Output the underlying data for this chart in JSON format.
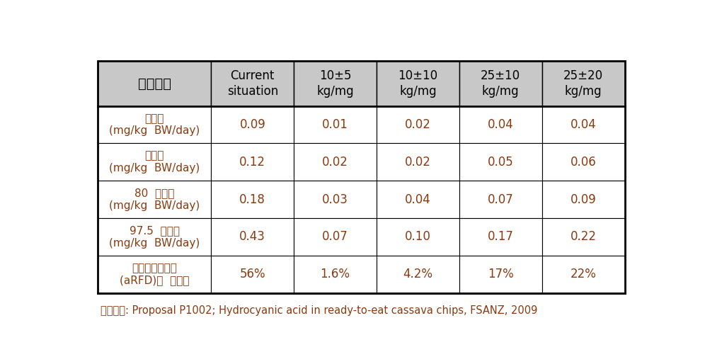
{
  "header_col0": "시나리오",
  "headers": [
    [
      "Current",
      "situation"
    ],
    [
      "10±5",
      "kg/mg"
    ],
    [
      "10±10",
      "kg/mg"
    ],
    [
      "25±10",
      "kg/mg"
    ],
    [
      "25±20",
      "kg/mg"
    ]
  ],
  "row_labels": [
    [
      "중앙값",
      "(mg/kg  BW/day)"
    ],
    [
      "중앙값",
      "(mg/kg  BW/day)"
    ],
    [
      "80  분위수",
      "(mg/kg  BW/day)"
    ],
    [
      "97.5  분위수",
      "(mg/kg  BW/day)"
    ],
    [
      "급성독성참고치",
      "(aRFD)의  가능성"
    ]
  ],
  "data": [
    [
      "0.09",
      "0.01",
      "0.02",
      "0.04",
      "0.04"
    ],
    [
      "0.12",
      "0.02",
      "0.02",
      "0.05",
      "0.06"
    ],
    [
      "0.18",
      "0.03",
      "0.04",
      "0.07",
      "0.09"
    ],
    [
      "0.43",
      "0.07",
      "0.10",
      "0.17",
      "0.22"
    ],
    [
      "56%",
      "1.6%",
      "4.2%",
      "17%",
      "22%"
    ]
  ],
  "footnote": "참고자료: Proposal P1002; Hydrocyanic acid in ready-to-eat cassava chips, FSANZ, 2009",
  "header_bg": "#C8C8C8",
  "header_text_color": "#000000",
  "cell_text_color": "#8B3A0F",
  "border_color": "#000000",
  "bg_color": "#FFFFFF",
  "footnote_color": "#8B3A0F",
  "figsize": [
    9.96,
    4.97
  ],
  "dpi": 100
}
